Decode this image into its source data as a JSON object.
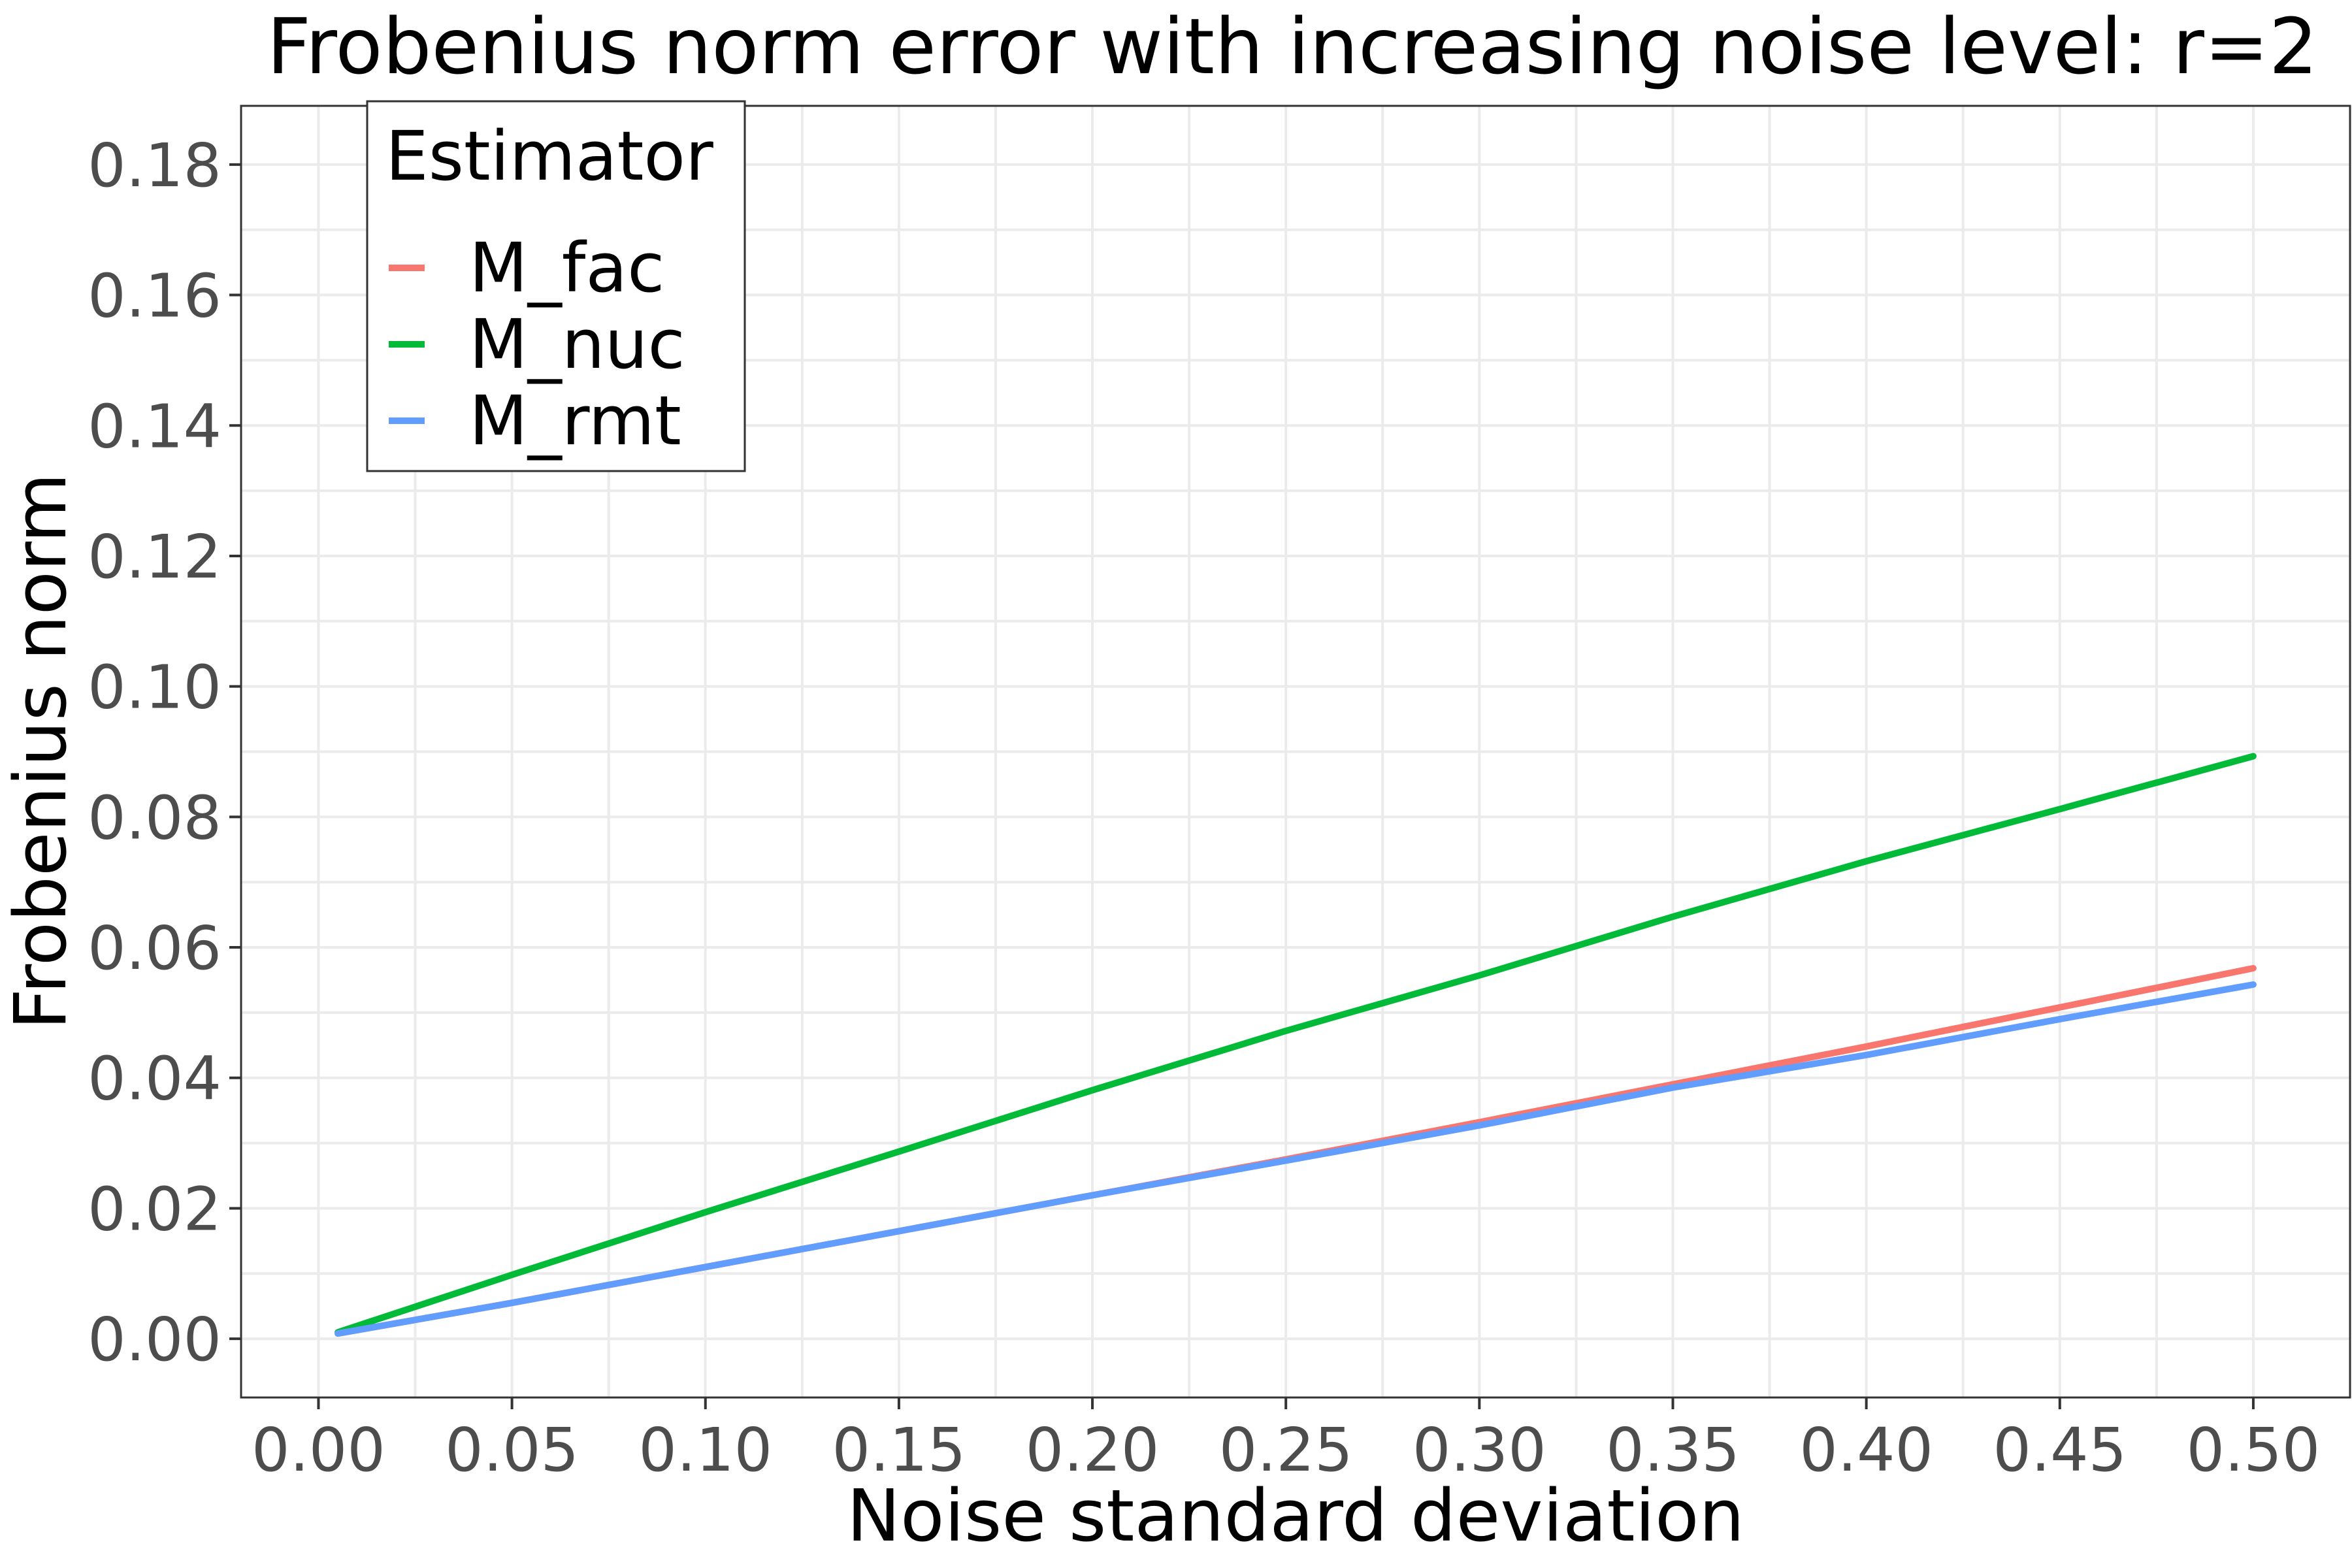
{
  "chart_data": {
    "type": "line",
    "title": "Frobenius norm error with increasing noise level: r=2",
    "xlabel": "Noise standard deviation",
    "ylabel": "Frobenius norm",
    "xlim": [
      -0.02,
      0.525
    ],
    "ylim": [
      -0.009,
      0.189
    ],
    "x_ticks": [
      "0.00",
      "0.05",
      "0.10",
      "0.15",
      "0.20",
      "0.25",
      "0.30",
      "0.35",
      "0.40",
      "0.45",
      "0.50"
    ],
    "y_ticks": [
      "0.00",
      "0.02",
      "0.04",
      "0.06",
      "0.08",
      "0.10",
      "0.12",
      "0.14",
      "0.16",
      "0.18"
    ],
    "grid": true,
    "legend": {
      "title": "Estimator",
      "position": "top-left"
    },
    "x": [
      0.005,
      0.05,
      0.1,
      0.15,
      0.2,
      0.25,
      0.3,
      0.35,
      0.4,
      0.45,
      0.5
    ],
    "series": [
      {
        "name": "M_fac",
        "color": "#F8766D",
        "values": [
          0.0008,
          0.0055,
          0.011,
          0.0165,
          0.022,
          0.0275,
          0.0332,
          0.039,
          0.0448,
          0.0508,
          0.0568
        ]
      },
      {
        "name": "M_nuc",
        "color": "#00BA38",
        "values": [
          0.001,
          0.0098,
          0.0194,
          0.0287,
          0.0381,
          0.0472,
          0.0557,
          0.0647,
          0.0732,
          0.0812,
          0.0893
        ]
      },
      {
        "name": "M_rmt",
        "color": "#619CFF",
        "values": [
          0.0008,
          0.0055,
          0.011,
          0.0165,
          0.022,
          0.0273,
          0.0327,
          0.0385,
          0.0435,
          0.049,
          0.0543
        ]
      }
    ]
  }
}
